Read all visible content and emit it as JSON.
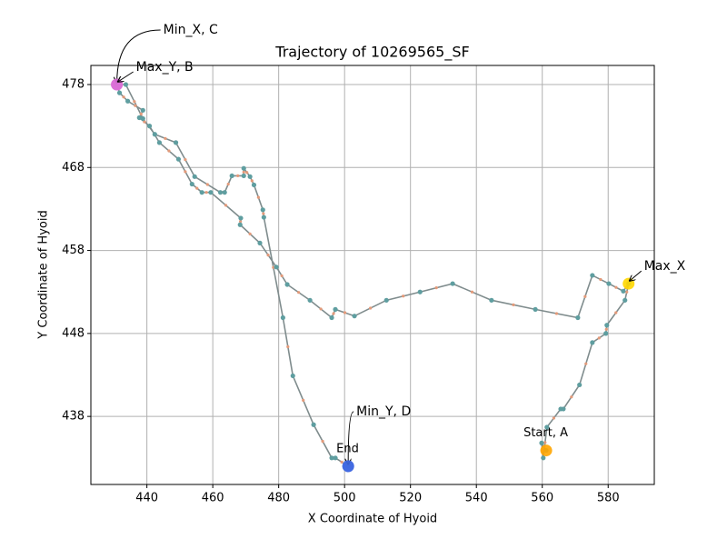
{
  "chart_data": {
    "type": "line",
    "title": "Trajectory of 10269565_SF",
    "xlabel": "X Coordinate of Hyoid",
    "ylabel": "Y Coordinate of Hyoid",
    "x": [
      561.2,
      559.8,
      560.3,
      561.4,
      565.6,
      566.4,
      571.3,
      575.2,
      579.3,
      579.6,
      585.1,
      586.2,
      584.6,
      580.2,
      575.2,
      570.8,
      557.9,
      544.6,
      532.8,
      522.9,
      512.7,
      503.0,
      497.2,
      496.1,
      489.5,
      482.6,
      479.3,
      474.3,
      468.3,
      468.5,
      459.4,
      456.7,
      453.7,
      449.6,
      443.8,
      440.8,
      437.7,
      438.8,
      434.2,
      431.7,
      430.9,
      433.6,
      438.8,
      442.4,
      448.8,
      454.5,
      462.3,
      463.6,
      465.8,
      469.4,
      469.4,
      471.3,
      472.5,
      475.2,
      475.5,
      481.3,
      484.3,
      490.6,
      496.1,
      497.2,
      501.1
    ],
    "values": [
      433.9,
      434.8,
      433.0,
      436.7,
      438.9,
      438.9,
      441.8,
      446.9,
      448.0,
      449.0,
      452.0,
      454.0,
      453.1,
      454.0,
      455.0,
      449.9,
      450.9,
      452.0,
      454.0,
      453.0,
      452.0,
      450.1,
      450.9,
      449.9,
      452.0,
      453.9,
      456.0,
      458.9,
      461.1,
      461.9,
      465.0,
      465.0,
      466.0,
      469.0,
      471.0,
      473.0,
      474.0,
      474.9,
      476.0,
      477.0,
      478.0,
      478.0,
      473.9,
      472.0,
      471.0,
      466.9,
      465.0,
      465.0,
      467.0,
      467.0,
      467.9,
      466.9,
      465.9,
      462.9,
      462.0,
      449.9,
      442.9,
      437.0,
      433.0,
      433.0,
      432.0
    ],
    "color": "#5f9ea0",
    "line_color": "#7f8c8d",
    "annotations": [
      {
        "text": "Start, A",
        "x": 561.2,
        "y": 433.9,
        "color": "#ffa500"
      },
      {
        "text": "Max_X",
        "x": 586.2,
        "y": 454.0,
        "color": "#ffd700"
      },
      {
        "text": "Min_X, C",
        "x": 430.9,
        "y": 478.0,
        "color": "#da70d6"
      },
      {
        "text": "Max_Y, B",
        "x": 430.9,
        "y": 478.0,
        "color": "#da70d6"
      },
      {
        "text": "Min_Y, D",
        "x": 501.1,
        "y": 432.0,
        "color": "#4169e1"
      },
      {
        "text": "End",
        "x": 501.1,
        "y": 432.0,
        "color": "#4169e1"
      }
    ],
    "xlim": [
      423,
      594
    ],
    "ylim": [
      429.8,
      480.3
    ],
    "xticks": [
      440,
      460,
      480,
      500,
      520,
      540,
      560,
      580
    ],
    "yticks": [
      438,
      448,
      458,
      468,
      478
    ],
    "grid": true
  }
}
